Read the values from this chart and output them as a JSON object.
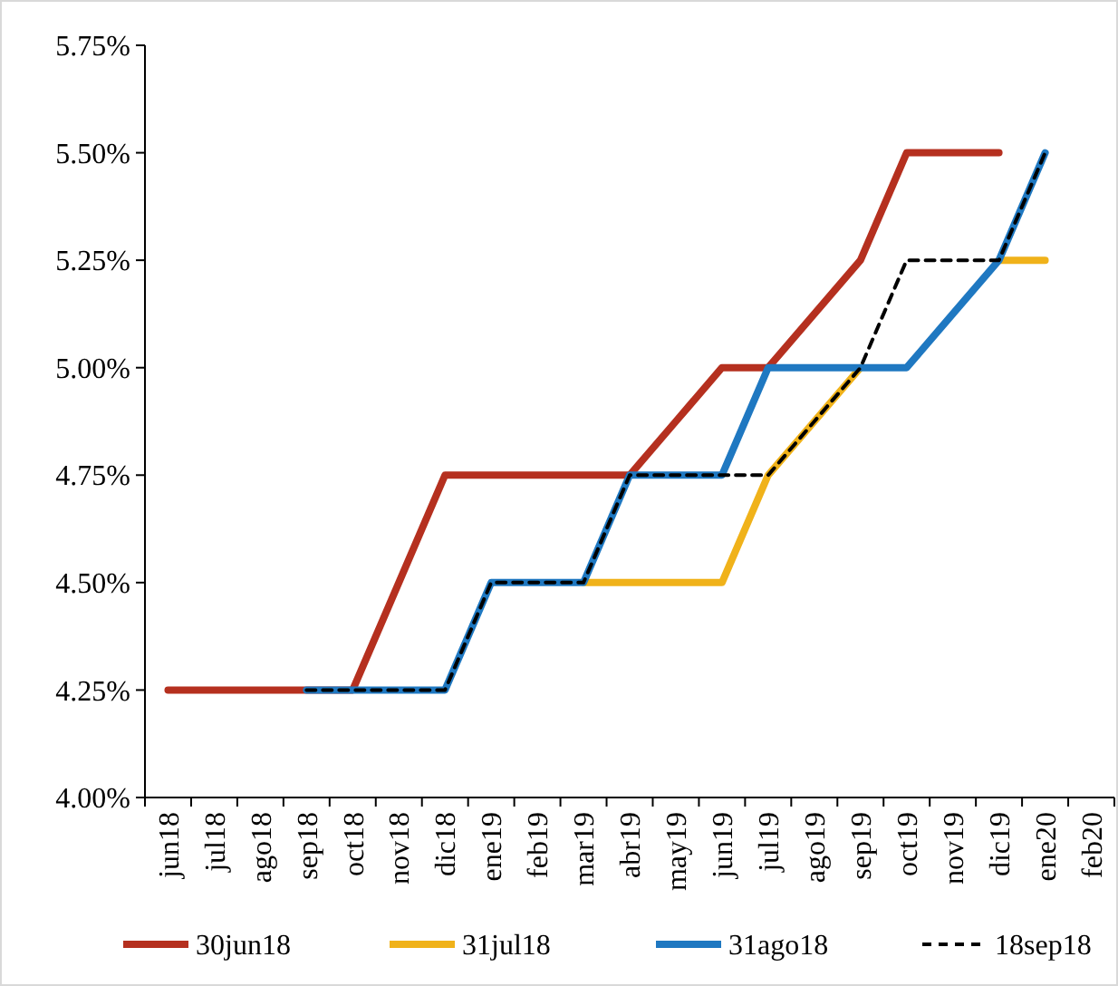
{
  "chart_data": {
    "type": "line",
    "categories": [
      "jun18",
      "jul18",
      "ago18",
      "sep18",
      "oct18",
      "nov18",
      "dic18",
      "ene19",
      "feb19",
      "mar19",
      "abr19",
      "may19",
      "jun19",
      "jul19",
      "ago19",
      "sep19",
      "oct19",
      "nov19",
      "dic19",
      "ene20",
      "feb20"
    ],
    "series": [
      {
        "name": "30jun18",
        "color": "#b5301f",
        "values": [
          4.25,
          4.25,
          4.25,
          4.25,
          4.25,
          4.5,
          4.75,
          4.75,
          4.75,
          4.75,
          4.75,
          4.875,
          5.0,
          5.0,
          5.125,
          5.25,
          5.5,
          5.5,
          5.5,
          null,
          null
        ]
      },
      {
        "name": "31jul18",
        "color": "#f0b21a",
        "values": [
          null,
          null,
          null,
          null,
          null,
          null,
          null,
          null,
          null,
          4.5,
          4.5,
          4.5,
          4.5,
          4.75,
          4.875,
          5.0,
          null,
          null,
          5.25,
          5.25,
          null
        ]
      },
      {
        "name": "31ago18",
        "color": "#1f78c1",
        "values": [
          null,
          null,
          null,
          4.25,
          4.25,
          4.25,
          4.25,
          4.5,
          4.5,
          4.5,
          4.75,
          4.75,
          4.75,
          5.0,
          5.0,
          5.0,
          5.0,
          5.125,
          5.25,
          5.5,
          null
        ]
      },
      {
        "name": "18sep18",
        "color": "#000000",
        "line_style": "dashed",
        "values": [
          null,
          null,
          null,
          4.25,
          4.25,
          4.25,
          4.25,
          4.5,
          4.5,
          4.5,
          4.75,
          4.75,
          4.75,
          4.75,
          4.875,
          5.0,
          5.25,
          5.25,
          5.25,
          5.5,
          null
        ]
      }
    ],
    "ylim": [
      4.0,
      5.75
    ],
    "yticks": [
      {
        "value": 4.0,
        "label": "4.00%"
      },
      {
        "value": 4.25,
        "label": "4.25%"
      },
      {
        "value": 4.5,
        "label": "4.50%"
      },
      {
        "value": 4.75,
        "label": "4.75%"
      },
      {
        "value": 5.0,
        "label": "5.00%"
      },
      {
        "value": 5.25,
        "label": "5.25%"
      },
      {
        "value": 5.5,
        "label": "5.50%"
      },
      {
        "value": 5.75,
        "label": "5.75%"
      }
    ],
    "grid": false,
    "legend": "bottom",
    "marker": "none"
  }
}
